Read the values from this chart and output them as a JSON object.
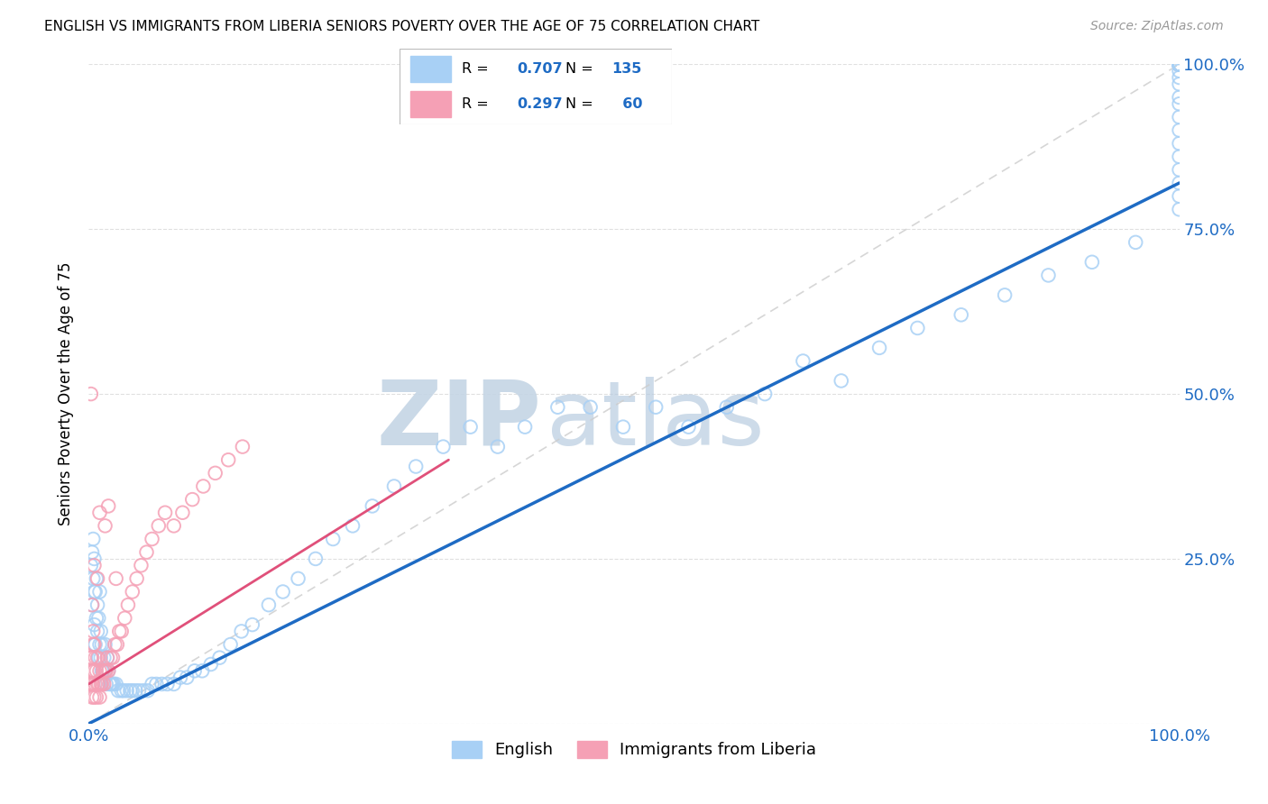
{
  "title": "ENGLISH VS IMMIGRANTS FROM LIBERIA SENIORS POVERTY OVER THE AGE OF 75 CORRELATION CHART",
  "source": "Source: ZipAtlas.com",
  "ylabel": "Seniors Poverty Over the Age of 75",
  "xlim": [
    0,
    1.0
  ],
  "ylim": [
    0,
    1.0
  ],
  "english_color": "#a8d0f5",
  "liberia_color": "#f5a0b5",
  "english_line_color": "#1e6bc4",
  "liberia_line_color": "#e0507a",
  "diagonal_color": "#cccccc",
  "watermark_zip_color": "#c5d5e5",
  "watermark_atlas_color": "#b8cce0",
  "tick_color": "#1e6bc4",
  "english_x": [
    0.002,
    0.003,
    0.003,
    0.004,
    0.004,
    0.005,
    0.005,
    0.005,
    0.006,
    0.006,
    0.007,
    0.007,
    0.008,
    0.008,
    0.009,
    0.009,
    0.01,
    0.01,
    0.011,
    0.011,
    0.012,
    0.012,
    0.013,
    0.014,
    0.015,
    0.015,
    0.016,
    0.017,
    0.018,
    0.019,
    0.02,
    0.021,
    0.022,
    0.023,
    0.025,
    0.027,
    0.03,
    0.032,
    0.035,
    0.038,
    0.04,
    0.043,
    0.046,
    0.05,
    0.054,
    0.058,
    0.062,
    0.067,
    0.072,
    0.078,
    0.084,
    0.09,
    0.097,
    0.104,
    0.112,
    0.12,
    0.13,
    0.14,
    0.15,
    0.165,
    0.178,
    0.192,
    0.208,
    0.224,
    0.242,
    0.26,
    0.28,
    0.3,
    0.325,
    0.35,
    0.375,
    0.4,
    0.43,
    0.46,
    0.49,
    0.52,
    0.55,
    0.585,
    0.62,
    0.655,
    0.69,
    0.725,
    0.76,
    0.8,
    0.84,
    0.88,
    0.92,
    0.96,
    1.0,
    1.0,
    1.0,
    1.0,
    1.0,
    1.0,
    1.0,
    1.0,
    1.0,
    1.0,
    1.0,
    1.0,
    1.0,
    1.0,
    1.0,
    1.0,
    1.0,
    1.0,
    1.0,
    1.0,
    1.0,
    1.0,
    1.0,
    1.0,
    1.0,
    1.0,
    1.0,
    1.0,
    1.0,
    1.0,
    1.0,
    1.0,
    1.0,
    1.0,
    1.0,
    1.0,
    1.0,
    1.0,
    1.0,
    1.0,
    1.0,
    1.0,
    1.0,
    1.0,
    1.0
  ],
  "english_y": [
    0.24,
    0.26,
    0.18,
    0.22,
    0.28,
    0.2,
    0.15,
    0.25,
    0.12,
    0.2,
    0.16,
    0.22,
    0.14,
    0.18,
    0.1,
    0.16,
    0.12,
    0.2,
    0.1,
    0.14,
    0.08,
    0.12,
    0.08,
    0.1,
    0.08,
    0.12,
    0.06,
    0.1,
    0.08,
    0.06,
    0.06,
    0.06,
    0.06,
    0.06,
    0.06,
    0.05,
    0.05,
    0.05,
    0.05,
    0.05,
    0.05,
    0.05,
    0.05,
    0.05,
    0.05,
    0.06,
    0.06,
    0.06,
    0.06,
    0.06,
    0.07,
    0.07,
    0.08,
    0.08,
    0.09,
    0.1,
    0.12,
    0.14,
    0.15,
    0.18,
    0.2,
    0.22,
    0.25,
    0.28,
    0.3,
    0.33,
    0.36,
    0.39,
    0.42,
    0.45,
    0.42,
    0.45,
    0.48,
    0.48,
    0.45,
    0.48,
    0.45,
    0.48,
    0.5,
    0.55,
    0.52,
    0.57,
    0.6,
    0.62,
    0.65,
    0.68,
    0.7,
    0.73,
    0.78,
    0.8,
    0.82,
    0.84,
    0.86,
    0.88,
    0.9,
    0.92,
    0.94,
    0.95,
    0.97,
    0.98,
    0.99,
    1.0,
    1.0,
    1.0,
    1.0,
    1.0,
    1.0,
    1.0,
    1.0,
    1.0,
    1.0,
    1.0,
    1.0,
    1.0,
    1.0,
    1.0,
    1.0,
    1.0,
    1.0,
    1.0,
    1.0,
    1.0,
    1.0,
    1.0,
    1.0,
    1.0,
    1.0,
    1.0,
    1.0,
    1.0,
    1.0,
    1.0,
    1.0
  ],
  "liberia_x": [
    0.001,
    0.002,
    0.002,
    0.003,
    0.003,
    0.003,
    0.004,
    0.004,
    0.004,
    0.005,
    0.005,
    0.005,
    0.006,
    0.006,
    0.007,
    0.007,
    0.008,
    0.008,
    0.009,
    0.01,
    0.01,
    0.011,
    0.012,
    0.013,
    0.014,
    0.015,
    0.016,
    0.017,
    0.018,
    0.02,
    0.022,
    0.024,
    0.026,
    0.028,
    0.03,
    0.033,
    0.036,
    0.04,
    0.044,
    0.048,
    0.053,
    0.058,
    0.064,
    0.07,
    0.078,
    0.086,
    0.095,
    0.105,
    0.116,
    0.128,
    0.141,
    0.01,
    0.005,
    0.003,
    0.018,
    0.008,
    0.004,
    0.015,
    0.025,
    0.002
  ],
  "liberia_y": [
    0.06,
    0.08,
    0.1,
    0.04,
    0.06,
    0.1,
    0.06,
    0.08,
    0.12,
    0.04,
    0.08,
    0.12,
    0.06,
    0.1,
    0.04,
    0.08,
    0.06,
    0.1,
    0.06,
    0.04,
    0.08,
    0.06,
    0.06,
    0.08,
    0.06,
    0.08,
    0.08,
    0.1,
    0.08,
    0.1,
    0.1,
    0.12,
    0.12,
    0.14,
    0.14,
    0.16,
    0.18,
    0.2,
    0.22,
    0.24,
    0.26,
    0.28,
    0.3,
    0.32,
    0.3,
    0.32,
    0.34,
    0.36,
    0.38,
    0.4,
    0.42,
    0.32,
    0.24,
    0.18,
    0.33,
    0.22,
    0.14,
    0.3,
    0.22,
    0.5
  ],
  "eng_trend_x0": 0.0,
  "eng_trend_y0": 0.0,
  "eng_trend_x1": 1.0,
  "eng_trend_y1": 0.82,
  "lib_trend_x0": 0.0,
  "lib_trend_y0": 0.06,
  "lib_trend_x1": 0.33,
  "lib_trend_y1": 0.4
}
